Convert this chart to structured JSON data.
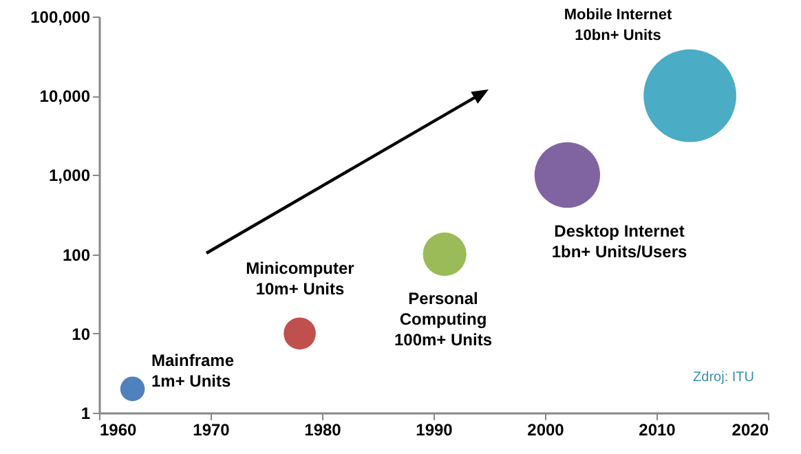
{
  "chart_data": {
    "type": "bubble",
    "x": [
      1963,
      1978,
      1991,
      2002,
      2013
    ],
    "values": [
      2,
      10,
      100,
      1000,
      10000
    ],
    "sizes": [
      0.07,
      0.12,
      0.22,
      0.5,
      1
    ],
    "colors": [
      "#4f81bd",
      "#c0504d",
      "#9bbb59",
      "#8064a2",
      "#4bacc6"
    ],
    "xlim": [
      1960,
      2020
    ],
    "xticks": [
      1960,
      1970,
      1980,
      1990,
      2000,
      2010,
      2020
    ],
    "ylim": [
      1,
      100000
    ],
    "yticks": [
      {
        "value": 1,
        "label": "1"
      },
      {
        "value": 10,
        "label": "10"
      },
      {
        "value": 100,
        "label": "100"
      },
      {
        "value": 1000,
        "label": "1,000"
      },
      {
        "value": 10000,
        "label": "10,000"
      },
      {
        "value": 100000,
        "label": "100,000"
      }
    ],
    "log": "y",
    "grid": false,
    "legend": false,
    "annotations": [
      "Mainframe\n1m+ Units",
      "Minicomputer\n10m+ Units",
      "Personal\nComputing\n100m+ Units",
      "Desktop Internet\n1bn+ Units/Users",
      "Mobile Internet\n10bn+ Units",
      "Zdroj: ITU"
    ]
  }
}
